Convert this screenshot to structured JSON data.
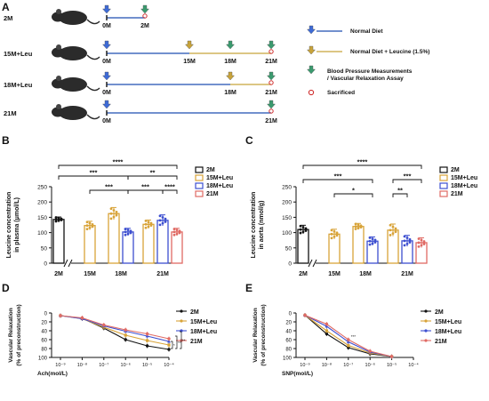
{
  "panels": {
    "A": "A",
    "B": "B",
    "C": "C",
    "D": "D",
    "E": "E"
  },
  "colors": {
    "c2M": "#111111",
    "c15": "#d8a338",
    "c18": "#3d4fd0",
    "c21": "#e06a64",
    "timeline2": "#1d4eb0",
    "timeline3": "#c8a33a"
  },
  "timeline": {
    "rows": [
      {
        "label": "2M",
        "ticks": [
          "0M",
          "2M"
        ]
      },
      {
        "label": "15M+Leu",
        "ticks": [
          "0M",
          "15M",
          "18M",
          "21M"
        ]
      },
      {
        "label": "18M+Leu",
        "ticks": [
          "0M",
          "18M",
          "21M"
        ]
      },
      {
        "label": "21M",
        "ticks": [
          "0M",
          "21M"
        ]
      }
    ],
    "legend": [
      {
        "icon": "blue-arrow-icon",
        "text": "Normal Diet"
      },
      {
        "icon": "yellow-arrow-icon",
        "text": "Normal Diet + Leucine (1.5%)"
      },
      {
        "icon": "green-arrow-icon",
        "text": "Blood Pressure Measurements"
      },
      {
        "icon": "",
        "text": "/ Vascular Relaxation Assay"
      },
      {
        "icon": "red-circle-icon",
        "text": "Sacrificed"
      }
    ]
  },
  "chart_data": [
    {
      "panel": "B",
      "type": "bar",
      "ylabel": [
        "Leucine concentration",
        "in plasma (μmol/L)"
      ],
      "yticks": [
        0,
        50,
        100,
        150,
        200,
        250
      ],
      "ylim": [
        0,
        250
      ],
      "groups": [
        "2M",
        "15M",
        "18M",
        "21M"
      ],
      "legend": [
        "2M",
        "15M+Leu",
        "18M+Leu",
        "21M"
      ],
      "bars": [
        {
          "group": "2M",
          "series": "2M",
          "value": 143,
          "err": 8
        },
        {
          "group": "15M",
          "series": "15M+Leu",
          "value": 123,
          "err": 14
        },
        {
          "group": "18M",
          "series": "15M+Leu",
          "value": 162,
          "err": 20
        },
        {
          "group": "18M",
          "series": "18M+Leu",
          "value": 102,
          "err": 12
        },
        {
          "group": "21M",
          "series": "15M+Leu",
          "value": 127,
          "err": 14
        },
        {
          "group": "21M",
          "series": "18M+Leu",
          "value": 140,
          "err": 18
        },
        {
          "group": "21M",
          "series": "21M",
          "value": 102,
          "err": 12
        }
      ],
      "significance": [
        "****",
        "***",
        "***",
        "***",
        "**",
        "****"
      ]
    },
    {
      "panel": "C",
      "type": "bar",
      "ylabel": [
        "Leucine concentration",
        "in aorta (nmol/g)"
      ],
      "yticks": [
        0,
        50,
        100,
        150,
        200,
        250
      ],
      "ylim": [
        0,
        250
      ],
      "groups": [
        "2M",
        "15M",
        "18M",
        "21M"
      ],
      "legend": [
        "2M",
        "15M+Leu",
        "18M+Leu",
        "21M"
      ],
      "bars": [
        {
          "group": "2M",
          "series": "2M",
          "value": 110,
          "err": 14
        },
        {
          "group": "15M",
          "series": "15M+Leu",
          "value": 95,
          "err": 16
        },
        {
          "group": "18M",
          "series": "15M+Leu",
          "value": 120,
          "err": 10
        },
        {
          "group": "18M",
          "series": "18M+Leu",
          "value": 72,
          "err": 14
        },
        {
          "group": "21M",
          "series": "15M+Leu",
          "value": 108,
          "err": 20
        },
        {
          "group": "21M",
          "series": "18M+Leu",
          "value": 73,
          "err": 18
        },
        {
          "group": "21M",
          "series": "21M",
          "value": 67,
          "err": 16
        }
      ],
      "significance": [
        "****",
        "***",
        "*",
        "**",
        "***"
      ]
    },
    {
      "panel": "D",
      "type": "line",
      "xlabel": "Ach(mol/L)",
      "ylabel": [
        "Vascular Relaxation",
        "(% of preconstruction)"
      ],
      "xticks": [
        "10⁻⁹",
        "10⁻⁸",
        "10⁻⁷",
        "10⁻⁶",
        "10⁻⁵",
        "10⁻⁴"
      ],
      "yticks": [
        0,
        20,
        40,
        60,
        80,
        100
      ],
      "ylim": [
        0,
        100
      ],
      "y_inverted": true,
      "legend": [
        "2M",
        "15M+Leu",
        "18M+Leu",
        "21M"
      ],
      "series": [
        {
          "name": "2M",
          "values": [
            6,
            12,
            34,
            60,
            74,
            82
          ]
        },
        {
          "name": "15M+Leu",
          "values": [
            6,
            13,
            32,
            50,
            62,
            72
          ]
        },
        {
          "name": "18M+Leu",
          "values": [
            6,
            13,
            29,
            41,
            52,
            64
          ]
        },
        {
          "name": "21M",
          "values": [
            6,
            11,
            27,
            38,
            47,
            58
          ]
        }
      ],
      "significance": [
        "*",
        "**",
        "**"
      ]
    },
    {
      "panel": "E",
      "type": "line",
      "xlabel": "SNP(mol/L)",
      "ylabel": [
        "Vascular Relaxation",
        "(% of preconstruction)"
      ],
      "xticks": [
        "10⁻⁹",
        "10⁻⁸",
        "10⁻⁷",
        "10⁻⁶",
        "10⁻⁵",
        "10⁻⁴"
      ],
      "yticks": [
        0,
        20,
        40,
        60,
        80,
        100
      ],
      "ylim": [
        0,
        100
      ],
      "y_inverted": true,
      "legend": [
        "2M",
        "15M+Leu",
        "18M+Leu",
        "21M"
      ],
      "series": [
        {
          "name": "2M",
          "values": [
            5,
            47,
            78,
            92,
            98
          ]
        },
        {
          "name": "15M+Leu",
          "values": [
            5,
            40,
            73,
            90,
            98
          ]
        },
        {
          "name": "18M+Leu",
          "values": [
            5,
            30,
            65,
            88,
            98
          ]
        },
        {
          "name": "21M",
          "values": [
            5,
            25,
            60,
            86,
            98
          ]
        }
      ],
      "significance": [
        "***"
      ]
    }
  ]
}
